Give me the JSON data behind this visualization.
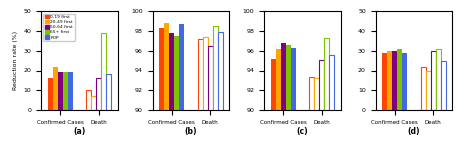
{
  "panels": [
    {
      "label": "(a)",
      "ylim": [
        0,
        50
      ],
      "yticks": [
        0,
        10,
        20,
        30,
        40,
        50
      ],
      "confirmed_cases": [
        16,
        22,
        19,
        19,
        19
      ],
      "death": [
        10,
        7,
        16,
        39,
        18
      ]
    },
    {
      "label": "(b)",
      "ylim": [
        90,
        100
      ],
      "yticks": [
        90,
        92,
        94,
        96,
        98,
        100
      ],
      "confirmed_cases": [
        98.3,
        98.8,
        97.8,
        97.5,
        98.7
      ],
      "death": [
        97.2,
        97.4,
        96.5,
        98.5,
        97.9
      ]
    },
    {
      "label": "(c)",
      "ylim": [
        90,
        100
      ],
      "yticks": [
        90,
        92,
        94,
        96,
        98,
        100
      ],
      "confirmed_cases": [
        95.2,
        96.2,
        96.8,
        96.6,
        96.3
      ],
      "death": [
        93.3,
        93.2,
        95.1,
        97.3,
        95.6
      ]
    },
    {
      "label": "(d)",
      "ylim": [
        0,
        50
      ],
      "yticks": [
        0,
        10,
        20,
        30,
        40,
        50
      ],
      "confirmed_cases": [
        29,
        30,
        30,
        31,
        29
      ],
      "death": [
        22,
        20,
        30,
        31,
        25
      ]
    }
  ],
  "categories": [
    "Confirmed Cases",
    "Death"
  ],
  "legend_labels": [
    "0-19 first",
    "20-49 first",
    "50-64 first",
    "65+ first",
    "POP"
  ],
  "colors": [
    "#FF4500",
    "#FFA500",
    "#800080",
    "#7DC400",
    "#4169E1"
  ],
  "bar_width": 0.13,
  "ylabel": "Reduction rate (%)"
}
